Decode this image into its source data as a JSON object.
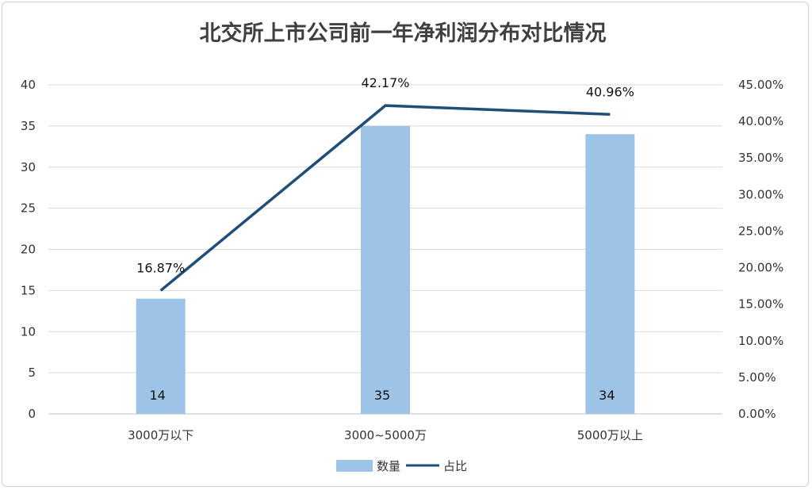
{
  "chart_data": {
    "title": "北交所上市公司前一年净利润分布对比情况",
    "type": "bar+line",
    "categories": [
      "3000万以下",
      "3000~5000万",
      "5000万以上"
    ],
    "series": [
      {
        "name": "数量",
        "type": "bar",
        "axis": "left",
        "values": [
          14,
          35,
          34
        ],
        "labels": [
          "14",
          "35",
          "34"
        ],
        "color": "#9dc3e6"
      },
      {
        "name": "占比",
        "type": "line",
        "axis": "right",
        "values": [
          16.87,
          42.17,
          40.96
        ],
        "labels": [
          "16.87%",
          "42.17%",
          "40.96%"
        ],
        "color": "#1f4e79"
      }
    ],
    "y_left": {
      "range": [
        0,
        40
      ],
      "ticks": [
        "0",
        "5",
        "10",
        "15",
        "20",
        "25",
        "30",
        "35",
        "40"
      ]
    },
    "y_right": {
      "range": [
        0,
        45
      ],
      "ticks": [
        "0.00%",
        "5.00%",
        "10.00%",
        "15.00%",
        "20.00%",
        "25.00%",
        "30.00%",
        "35.00%",
        "40.00%",
        "45.00%"
      ]
    },
    "grid": true,
    "legend_position": "bottom"
  }
}
